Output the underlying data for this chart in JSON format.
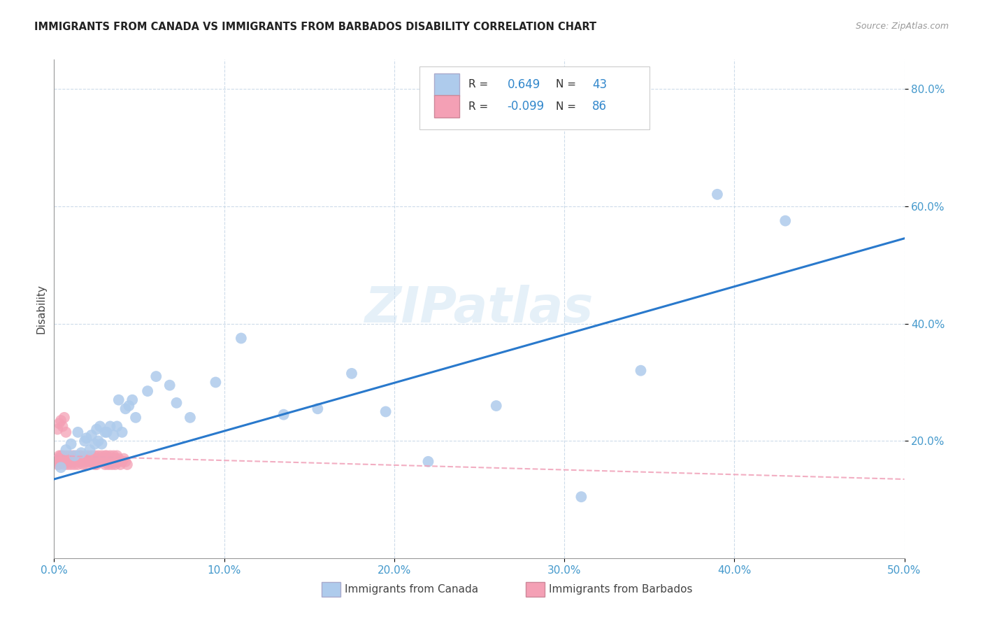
{
  "title": "IMMIGRANTS FROM CANADA VS IMMIGRANTS FROM BARBADOS DISABILITY CORRELATION CHART",
  "source": "Source: ZipAtlas.com",
  "ylabel": "Disability",
  "xlim": [
    0.0,
    0.5
  ],
  "ylim": [
    0.0,
    0.85
  ],
  "xtick_labels": [
    "0.0%",
    "10.0%",
    "20.0%",
    "30.0%",
    "40.0%",
    "50.0%"
  ],
  "xtick_vals": [
    0.0,
    0.1,
    0.2,
    0.3,
    0.4,
    0.5
  ],
  "ytick_labels": [
    "20.0%",
    "40.0%",
    "60.0%",
    "80.0%"
  ],
  "ytick_vals": [
    0.2,
    0.4,
    0.6,
    0.8
  ],
  "canada_color": "#aecbec",
  "canada_edge": "#aecbec",
  "barbados_color": "#f4a0b5",
  "barbados_edge": "#f4a0b5",
  "trendline_canada_color": "#2979cc",
  "trendline_barbados_color": "#f0a0b8",
  "legend_R_canada": "0.649",
  "legend_N_canada": "43",
  "legend_R_barbados": "-0.099",
  "legend_N_barbados": "86",
  "legend_label_canada": "Immigrants from Canada",
  "legend_label_barbados": "Immigrants from Barbados",
  "watermark": "ZIPatlas",
  "canada_x": [
    0.004,
    0.007,
    0.01,
    0.012,
    0.014,
    0.016,
    0.018,
    0.019,
    0.021,
    0.022,
    0.024,
    0.025,
    0.026,
    0.027,
    0.028,
    0.03,
    0.031,
    0.033,
    0.035,
    0.037,
    0.038,
    0.04,
    0.042,
    0.044,
    0.046,
    0.048,
    0.055,
    0.06,
    0.068,
    0.072,
    0.08,
    0.095,
    0.11,
    0.135,
    0.155,
    0.175,
    0.195,
    0.22,
    0.26,
    0.31,
    0.345,
    0.39,
    0.43
  ],
  "canada_y": [
    0.155,
    0.185,
    0.195,
    0.175,
    0.215,
    0.18,
    0.2,
    0.205,
    0.185,
    0.21,
    0.195,
    0.22,
    0.2,
    0.225,
    0.195,
    0.215,
    0.215,
    0.225,
    0.21,
    0.225,
    0.27,
    0.215,
    0.255,
    0.26,
    0.27,
    0.24,
    0.285,
    0.31,
    0.295,
    0.265,
    0.24,
    0.3,
    0.375,
    0.245,
    0.255,
    0.315,
    0.25,
    0.165,
    0.26,
    0.105,
    0.32,
    0.62,
    0.575
  ],
  "barbados_x": [
    0.001,
    0.002,
    0.002,
    0.003,
    0.003,
    0.004,
    0.004,
    0.005,
    0.005,
    0.006,
    0.006,
    0.007,
    0.007,
    0.008,
    0.008,
    0.009,
    0.009,
    0.01,
    0.01,
    0.011,
    0.011,
    0.012,
    0.012,
    0.013,
    0.013,
    0.014,
    0.014,
    0.015,
    0.015,
    0.016,
    0.016,
    0.017,
    0.017,
    0.018,
    0.018,
    0.019,
    0.019,
    0.02,
    0.02,
    0.021,
    0.021,
    0.022,
    0.022,
    0.023,
    0.023,
    0.024,
    0.024,
    0.025,
    0.025,
    0.026,
    0.026,
    0.027,
    0.027,
    0.028,
    0.028,
    0.029,
    0.029,
    0.03,
    0.03,
    0.031,
    0.031,
    0.032,
    0.032,
    0.033,
    0.033,
    0.034,
    0.034,
    0.035,
    0.035,
    0.036,
    0.036,
    0.037,
    0.037,
    0.038,
    0.038,
    0.039,
    0.04,
    0.041,
    0.042,
    0.043,
    0.002,
    0.003,
    0.004,
    0.005,
    0.006,
    0.007
  ],
  "barbados_y": [
    0.165,
    0.17,
    0.16,
    0.175,
    0.16,
    0.165,
    0.175,
    0.165,
    0.175,
    0.16,
    0.17,
    0.165,
    0.175,
    0.16,
    0.17,
    0.165,
    0.175,
    0.16,
    0.17,
    0.165,
    0.175,
    0.16,
    0.17,
    0.165,
    0.175,
    0.16,
    0.17,
    0.165,
    0.175,
    0.165,
    0.175,
    0.16,
    0.17,
    0.165,
    0.175,
    0.16,
    0.17,
    0.165,
    0.175,
    0.165,
    0.17,
    0.165,
    0.175,
    0.165,
    0.17,
    0.16,
    0.175,
    0.16,
    0.17,
    0.165,
    0.175,
    0.165,
    0.17,
    0.165,
    0.175,
    0.165,
    0.17,
    0.16,
    0.175,
    0.165,
    0.175,
    0.16,
    0.17,
    0.165,
    0.175,
    0.16,
    0.17,
    0.165,
    0.175,
    0.16,
    0.17,
    0.165,
    0.175,
    0.165,
    0.17,
    0.16,
    0.165,
    0.17,
    0.165,
    0.16,
    0.22,
    0.23,
    0.235,
    0.225,
    0.24,
    0.215
  ]
}
